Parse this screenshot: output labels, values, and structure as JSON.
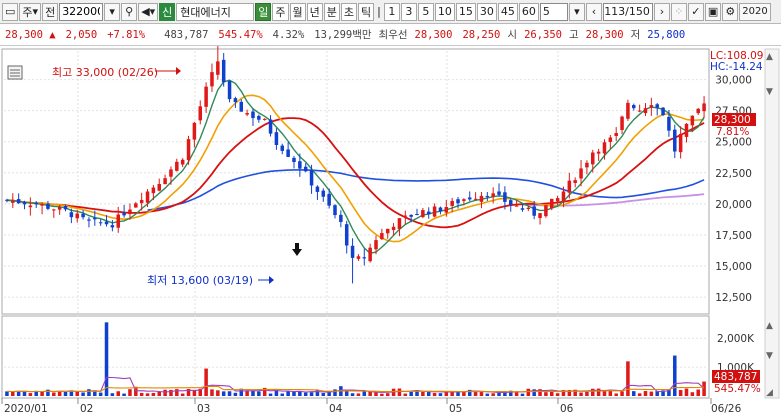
{
  "toolbar": {
    "market": "주",
    "type_label": "전",
    "code": "322000",
    "market_tag": "신",
    "stock_name": "현대에너지",
    "periods": [
      "일",
      "주",
      "월",
      "년",
      "분",
      "초",
      "틱"
    ],
    "active_period": "일",
    "intervals": [
      "1",
      "3",
      "5",
      "10",
      "15",
      "30",
      "45",
      "60"
    ],
    "count_value": "5",
    "page_counter": "113/150",
    "right_label": "2020"
  },
  "quote": {
    "price": "28,300",
    "change": "2,050",
    "change_pct": "+7.81%",
    "volume": "483,787",
    "volume_ratio": "545.47%",
    "turnover_pct": "4.32%",
    "amount": "13,299백만",
    "best_label": "최우선",
    "best_ask": "28,300",
    "best_bid": "28,250",
    "open_label": "시",
    "open": "26,350",
    "high_label": "고",
    "high": "28,300",
    "low_label": "저",
    "low": "25,800"
  },
  "indicators": {
    "lc": "LC:108.09",
    "hc": "HC:-14.24",
    "price_badge": "28,300",
    "pct_badge": "7.81%",
    "vol_badge": "483,787",
    "vol_pct_badge": "545.47%"
  },
  "annotations": {
    "high_note": "최고 33,000 (02/26)",
    "low_note": "최저 13,600 (03/19)"
  },
  "chart_data": {
    "type": "candlestick",
    "price_axis": [
      "30,000",
      "27,500",
      "25,000",
      "22,500",
      "20,000",
      "17,500",
      "15,000",
      "12,500"
    ],
    "price_axis_values": [
      30000,
      27500,
      25000,
      22500,
      20000,
      17500,
      15000,
      12500
    ],
    "volume_axis": [
      "2,000K",
      "1,000K"
    ],
    "volume_axis_values": [
      2000,
      1000
    ],
    "x_labels": [
      "2020/01",
      "02",
      "03",
      "04",
      "05",
      "06",
      "06/26"
    ],
    "price_range": [
      11300,
      32300
    ],
    "volume_range": [
      0,
      2700
    ],
    "colors": {
      "up": "#e01818",
      "down": "#1040d0",
      "ma5": "#2e8b57",
      "ma10": "#f0a000",
      "ma20": "#d81010",
      "ma60": "#2050e0",
      "ma120": "#c890e8"
    }
  }
}
